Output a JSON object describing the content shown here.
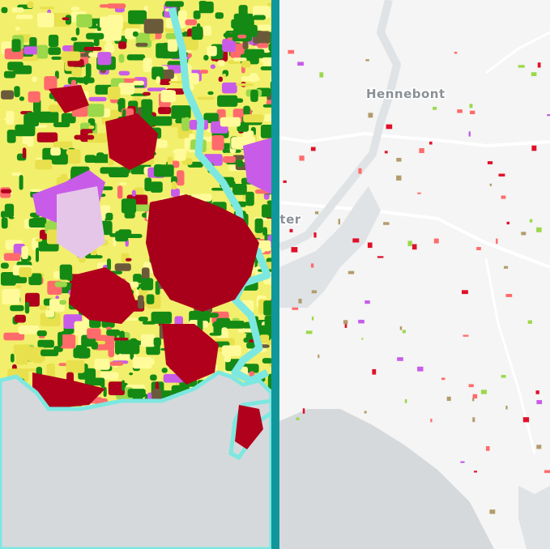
{
  "labels": {
    "town_1": "Hennebont",
    "town_2": "ster"
  }
}
